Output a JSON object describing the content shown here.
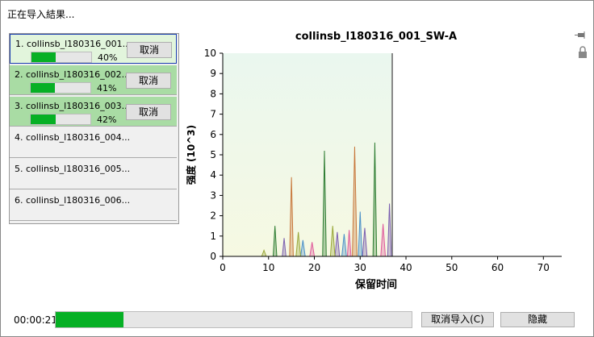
{
  "window_title": "正在导入結果...",
  "jobs": [
    {
      "label": "1. collinsb_l180316_001...",
      "progress": 40,
      "progress_label": "40%",
      "button": "取消"
    },
    {
      "label": "2. collinsb_l180316_002...",
      "progress": 41,
      "progress_label": "41%",
      "button": "取消"
    },
    {
      "label": "3. collinsb_l180316_003...",
      "progress": 42,
      "progress_label": "42%",
      "button": "取消"
    },
    {
      "label": "4. collinsb_l180316_004..."
    },
    {
      "label": "5. collinsb_l180316_005..."
    },
    {
      "label": "6. collinsb_l180316_006..."
    }
  ],
  "chart_data": {
    "type": "line",
    "title": "collinsb_l180316_001_SW-A",
    "x_label": "保留时间",
    "y_label": "强度 (10^3)",
    "xlim": [
      0,
      74
    ],
    "ylim": [
      0,
      10
    ],
    "xticks": [
      0,
      10,
      20,
      30,
      40,
      50,
      60,
      70
    ],
    "yticks": [
      0,
      1,
      2,
      3,
      4,
      5,
      6,
      7,
      8,
      9,
      10
    ],
    "shade_until": 37,
    "series": [
      {
        "color": "#2e7d32",
        "x": [
          0,
          11,
          11.4,
          11.8,
          21.8,
          22.2,
          22.6,
          32.8,
          33.2,
          33.6,
          37
        ],
        "values": [
          0,
          0,
          1.5,
          0,
          0,
          5.2,
          0,
          0,
          5.6,
          0,
          0
        ]
      },
      {
        "color": "#c8783c",
        "x": [
          0,
          14.6,
          15,
          15.4,
          28.3,
          28.8,
          29.3,
          37
        ],
        "values": [
          0,
          0,
          3.9,
          0,
          0,
          5.4,
          0,
          0
        ]
      },
      {
        "color": "#7b5fb0",
        "x": [
          0,
          13,
          13.4,
          13.8,
          24.5,
          25,
          25.5,
          30.5,
          31,
          31.5,
          36,
          36.4,
          36.8
        ],
        "values": [
          0,
          0,
          0.9,
          0,
          0,
          1.2,
          0,
          0,
          1.4,
          0,
          0,
          2.6,
          0
        ]
      },
      {
        "color": "#4a90c8",
        "x": [
          0,
          17,
          17.5,
          18,
          26,
          26.5,
          27,
          29.6,
          30,
          30.4,
          37
        ],
        "values": [
          0,
          0,
          0.8,
          0,
          0,
          1.1,
          0,
          0,
          2.2,
          0,
          0
        ]
      },
      {
        "color": "#e05a9c",
        "x": [
          0,
          19,
          19.5,
          20,
          27.2,
          27.6,
          28,
          34.5,
          35,
          35.5,
          37
        ],
        "values": [
          0,
          0,
          0.7,
          0,
          0,
          1.3,
          0,
          0,
          1.6,
          0,
          0
        ]
      },
      {
        "color": "#9aa83a",
        "x": [
          0,
          8.5,
          9,
          9.5,
          16,
          16.5,
          17,
          23.5,
          24,
          24.5,
          37
        ],
        "values": [
          0,
          0,
          0.3,
          0,
          0,
          1.2,
          0,
          0,
          1.5,
          0,
          0
        ]
      }
    ]
  },
  "footer": {
    "elapsed": "00:00:21",
    "progress": 19,
    "buttons": [
      "取消导入(C)",
      "隐藏"
    ]
  }
}
